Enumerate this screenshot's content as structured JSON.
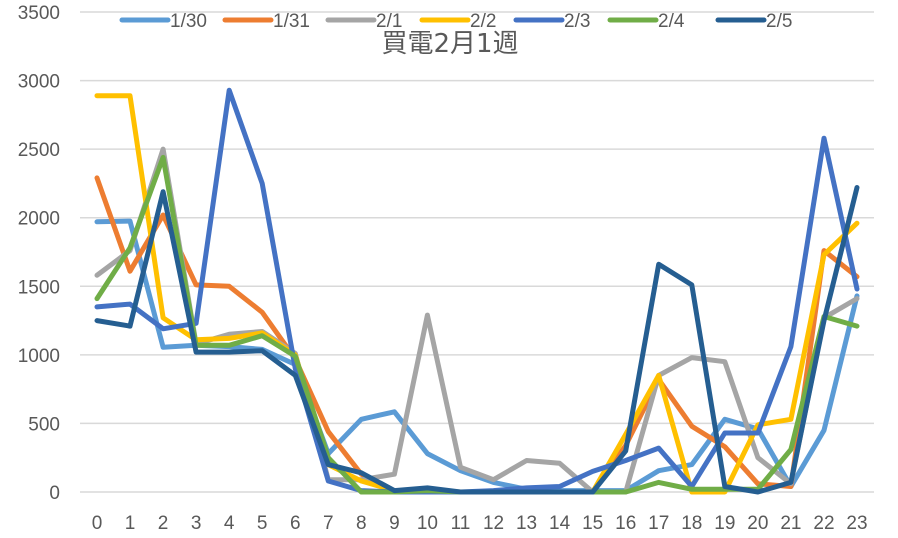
{
  "chart_data": {
    "type": "line",
    "title": "買電2月1週",
    "xlabel": "",
    "ylabel": "",
    "x": [
      0,
      1,
      2,
      3,
      4,
      5,
      6,
      7,
      8,
      9,
      10,
      11,
      12,
      13,
      14,
      15,
      16,
      17,
      18,
      19,
      20,
      21,
      22,
      23
    ],
    "categories": [
      "0",
      "1",
      "2",
      "3",
      "4",
      "5",
      "6",
      "7",
      "8",
      "9",
      "10",
      "11",
      "12",
      "13",
      "14",
      "15",
      "16",
      "17",
      "18",
      "19",
      "20",
      "21",
      "22",
      "23"
    ],
    "ylim": [
      0,
      3500
    ],
    "yticks": [
      0,
      500,
      1000,
      1500,
      2000,
      2500,
      3000,
      3500
    ],
    "grid": true,
    "legend_position": "top",
    "series": [
      {
        "name": "1/30",
        "color": "#5B9BD5",
        "values": [
          1970,
          1975,
          1055,
          1070,
          1060,
          1040,
          930,
          280,
          530,
          585,
          280,
          155,
          70,
          20,
          10,
          10,
          10,
          155,
          200,
          530,
          460,
          40,
          450,
          1430
        ]
      },
      {
        "name": "1/31",
        "color": "#ED7D31",
        "values": [
          2290,
          1610,
          2020,
          1510,
          1500,
          1310,
          970,
          440,
          130,
          0,
          0,
          0,
          0,
          0,
          0,
          0,
          340,
          820,
          480,
          330,
          60,
          40,
          1760,
          1570
        ]
      },
      {
        "name": "2/1",
        "color": "#A5A5A5",
        "values": [
          1580,
          1760,
          2500,
          1080,
          1150,
          1170,
          1010,
          90,
          90,
          130,
          1290,
          180,
          90,
          230,
          210,
          0,
          0,
          850,
          980,
          950,
          250,
          60,
          1270,
          1410
        ]
      },
      {
        "name": "2/2",
        "color": "#FFC000",
        "values": [
          2890,
          2890,
          1270,
          1110,
          1120,
          1160,
          1000,
          200,
          80,
          10,
          0,
          0,
          0,
          0,
          0,
          0,
          420,
          850,
          0,
          0,
          490,
          530,
          1730,
          1960
        ]
      },
      {
        "name": "2/3",
        "color": "#4472C4",
        "values": [
          1350,
          1370,
          1190,
          1230,
          2930,
          2250,
          900,
          80,
          10,
          0,
          0,
          0,
          10,
          30,
          40,
          150,
          230,
          320,
          40,
          430,
          430,
          1060,
          2580,
          1480
        ]
      },
      {
        "name": "2/4",
        "color": "#70AD47",
        "values": [
          1410,
          1780,
          2440,
          1070,
          1070,
          1140,
          990,
          250,
          0,
          0,
          10,
          0,
          0,
          0,
          0,
          0,
          0,
          70,
          20,
          20,
          20,
          310,
          1280,
          1210
        ]
      },
      {
        "name": "2/5",
        "color": "#255E91",
        "values": [
          1250,
          1210,
          2190,
          1020,
          1020,
          1030,
          850,
          200,
          140,
          10,
          30,
          0,
          0,
          0,
          0,
          0,
          300,
          1660,
          1510,
          40,
          0,
          70,
          1250,
          2220
        ]
      }
    ]
  }
}
